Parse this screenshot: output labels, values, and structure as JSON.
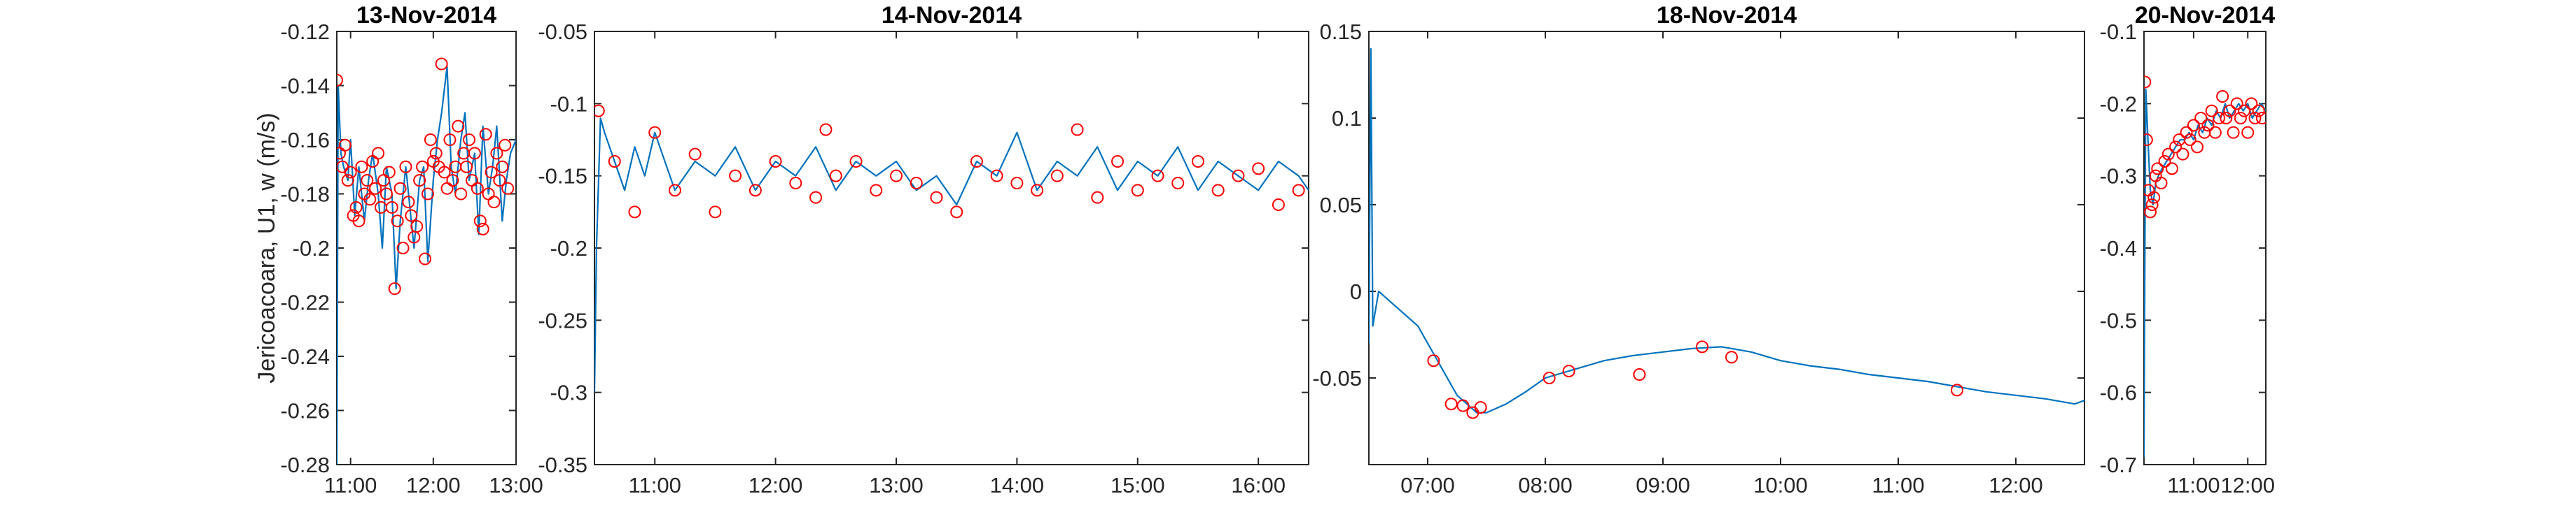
{
  "figure": {
    "ylabel": "Jericoacoara, U1, w (m/s)",
    "colors": {
      "line": "#0072BD",
      "marker": "#FF0000",
      "axis": "#262626",
      "background": "#FFFFFF"
    }
  },
  "chart_data": [
    {
      "type": "line",
      "title": "13-Nov-2014",
      "x_axis": "time of day",
      "xlim": [
        "10:50",
        "13:00"
      ],
      "xticks": [
        "11:00",
        "12:00",
        "13:00"
      ],
      "ylim": [
        -0.28,
        -0.12
      ],
      "yticks": [
        -0.28,
        -0.26,
        -0.24,
        -0.22,
        -0.2,
        -0.18,
        -0.16,
        -0.14,
        -0.12
      ],
      "grid": false,
      "legend": "none",
      "series": [
        {
          "style": "thin blue line, raw signal",
          "x": [
            "10:50",
            "10:51",
            "10:53",
            "10:55",
            "10:58",
            "11:00",
            "11:03",
            "11:06",
            "11:10",
            "11:13",
            "11:16",
            "11:20",
            "11:23",
            "11:26",
            "11:30",
            "11:33",
            "11:36",
            "11:40",
            "11:43",
            "11:46",
            "11:50",
            "11:53",
            "11:56",
            "12:00",
            "12:03",
            "12:06",
            "12:10",
            "12:13",
            "12:16",
            "12:20",
            "12:23",
            "12:26",
            "12:30",
            "12:33",
            "12:36",
            "12:40",
            "12:43",
            "12:46",
            "12:50",
            "12:53",
            "12:56",
            "13:00"
          ],
          "y": [
            -0.28,
            -0.14,
            -0.165,
            -0.17,
            -0.175,
            -0.16,
            -0.188,
            -0.17,
            -0.19,
            -0.175,
            -0.165,
            -0.18,
            -0.2,
            -0.17,
            -0.18,
            -0.215,
            -0.19,
            -0.17,
            -0.185,
            -0.2,
            -0.175,
            -0.17,
            -0.205,
            -0.175,
            -0.16,
            -0.15,
            -0.133,
            -0.17,
            -0.18,
            -0.16,
            -0.15,
            -0.175,
            -0.165,
            -0.195,
            -0.155,
            -0.18,
            -0.17,
            -0.155,
            -0.19,
            -0.175,
            -0.165,
            -0.16
          ]
        },
        {
          "style": "red circle markers",
          "x": [
            "10:50",
            "10:52",
            "10:54",
            "10:56",
            "10:58",
            "11:00",
            "11:02",
            "11:04",
            "11:06",
            "11:08",
            "11:10",
            "11:12",
            "11:14",
            "11:16",
            "11:18",
            "11:20",
            "11:22",
            "11:24",
            "11:26",
            "11:28",
            "11:30",
            "11:32",
            "11:34",
            "11:36",
            "11:38",
            "11:40",
            "11:42",
            "11:44",
            "11:46",
            "11:48",
            "11:50",
            "11:52",
            "11:54",
            "11:56",
            "11:58",
            "12:00",
            "12:02",
            "12:04",
            "12:06",
            "12:08",
            "12:10",
            "12:12",
            "12:14",
            "12:16",
            "12:18",
            "12:20",
            "12:22",
            "12:24",
            "12:26",
            "12:28",
            "12:30",
            "12:32",
            "12:34",
            "12:36",
            "12:38",
            "12:40",
            "12:42",
            "12:44",
            "12:46",
            "12:48",
            "12:50",
            "12:52",
            "12:54"
          ],
          "y": [
            -0.138,
            -0.165,
            -0.17,
            -0.162,
            -0.175,
            -0.172,
            -0.188,
            -0.185,
            -0.19,
            -0.17,
            -0.18,
            -0.175,
            -0.182,
            -0.168,
            -0.178,
            -0.165,
            -0.185,
            -0.175,
            -0.18,
            -0.172,
            -0.185,
            -0.215,
            -0.19,
            -0.178,
            -0.2,
            -0.17,
            -0.183,
            -0.188,
            -0.196,
            -0.192,
            -0.175,
            -0.17,
            -0.204,
            -0.18,
            -0.16,
            -0.168,
            -0.165,
            -0.17,
            -0.132,
            -0.172,
            -0.178,
            -0.16,
            -0.175,
            -0.17,
            -0.155,
            -0.18,
            -0.165,
            -0.17,
            -0.16,
            -0.175,
            -0.165,
            -0.178,
            -0.19,
            -0.193,
            -0.158,
            -0.18,
            -0.172,
            -0.183,
            -0.165,
            -0.175,
            -0.17,
            -0.162,
            -0.178
          ]
        }
      ]
    },
    {
      "type": "line",
      "title": "14-Nov-2014",
      "x_axis": "time of day",
      "xlim": [
        "10:30",
        "16:25"
      ],
      "xticks": [
        "11:00",
        "12:00",
        "13:00",
        "14:00",
        "15:00",
        "16:00"
      ],
      "ylim": [
        -0.35,
        -0.05
      ],
      "yticks": [
        -0.35,
        -0.3,
        -0.25,
        -0.2,
        -0.15,
        -0.1,
        -0.05
      ],
      "grid": false,
      "legend": "none",
      "series": [
        {
          "style": "thin blue line, raw signal",
          "x": [
            "10:30",
            "10:31",
            "10:33",
            "10:35",
            "10:40",
            "10:45",
            "10:50",
            "10:55",
            "11:00",
            "11:10",
            "11:20",
            "11:30",
            "11:40",
            "11:50",
            "12:00",
            "12:10",
            "12:20",
            "12:30",
            "12:40",
            "12:50",
            "13:00",
            "13:10",
            "13:20",
            "13:30",
            "13:40",
            "13:50",
            "14:00",
            "14:10",
            "14:20",
            "14:30",
            "14:40",
            "14:50",
            "15:00",
            "15:10",
            "15:20",
            "15:30",
            "15:40",
            "15:50",
            "16:00",
            "16:10",
            "16:20",
            "16:25"
          ],
          "y": [
            -0.3,
            -0.2,
            -0.11,
            -0.12,
            -0.14,
            -0.16,
            -0.13,
            -0.15,
            -0.12,
            -0.16,
            -0.14,
            -0.15,
            -0.13,
            -0.16,
            -0.14,
            -0.15,
            -0.13,
            -0.16,
            -0.14,
            -0.15,
            -0.14,
            -0.16,
            -0.15,
            -0.17,
            -0.14,
            -0.15,
            -0.12,
            -0.16,
            -0.14,
            -0.15,
            -0.13,
            -0.16,
            -0.14,
            -0.15,
            -0.13,
            -0.16,
            -0.14,
            -0.15,
            -0.16,
            -0.14,
            -0.15,
            -0.16
          ]
        },
        {
          "style": "red circle markers",
          "x": [
            "10:32",
            "10:40",
            "10:50",
            "11:00",
            "11:10",
            "11:20",
            "11:30",
            "11:40",
            "11:50",
            "12:00",
            "12:10",
            "12:20",
            "12:25",
            "12:30",
            "12:40",
            "12:50",
            "13:00",
            "13:10",
            "13:20",
            "13:30",
            "13:40",
            "13:50",
            "14:00",
            "14:10",
            "14:20",
            "14:30",
            "14:40",
            "14:50",
            "15:00",
            "15:10",
            "15:20",
            "15:30",
            "15:40",
            "15:50",
            "16:00",
            "16:10",
            "16:20"
          ],
          "y": [
            -0.105,
            -0.14,
            -0.175,
            -0.12,
            -0.16,
            -0.135,
            -0.175,
            -0.15,
            -0.16,
            -0.14,
            -0.155,
            -0.165,
            -0.118,
            -0.15,
            -0.14,
            -0.16,
            -0.15,
            -0.155,
            -0.165,
            -0.175,
            -0.14,
            -0.15,
            -0.155,
            -0.16,
            -0.15,
            -0.118,
            -0.165,
            -0.14,
            -0.16,
            -0.15,
            -0.155,
            -0.14,
            -0.16,
            -0.15,
            -0.145,
            -0.17,
            -0.16
          ]
        }
      ]
    },
    {
      "type": "line",
      "title": "18-Nov-2014",
      "x_axis": "time of day",
      "xlim": [
        "06:30",
        "12:35"
      ],
      "xticks": [
        "07:00",
        "08:00",
        "09:00",
        "10:00",
        "11:00",
        "12:00"
      ],
      "ylim": [
        -0.1,
        0.15
      ],
      "yticks": [
        -0.05,
        0,
        0.05,
        0.1,
        0.15
      ],
      "grid": false,
      "legend": "none",
      "series": [
        {
          "style": "thin blue line, raw signal",
          "x": [
            "06:30",
            "06:31",
            "06:32",
            "06:35",
            "06:40",
            "06:45",
            "06:50",
            "06:55",
            "07:00",
            "07:05",
            "07:10",
            "07:15",
            "07:20",
            "07:25",
            "07:30",
            "07:40",
            "07:50",
            "08:00",
            "08:15",
            "08:30",
            "08:45",
            "09:00",
            "09:15",
            "09:30",
            "09:45",
            "10:00",
            "10:15",
            "10:30",
            "10:45",
            "11:00",
            "11:15",
            "11:30",
            "11:45",
            "12:00",
            "12:15",
            "12:30",
            "12:35"
          ],
          "y": [
            -0.03,
            0.14,
            -0.02,
            0.0,
            -0.005,
            -0.01,
            -0.015,
            -0.02,
            -0.03,
            -0.04,
            -0.05,
            -0.06,
            -0.065,
            -0.07,
            -0.07,
            -0.065,
            -0.058,
            -0.05,
            -0.045,
            -0.04,
            -0.037,
            -0.035,
            -0.033,
            -0.032,
            -0.035,
            -0.04,
            -0.043,
            -0.045,
            -0.048,
            -0.05,
            -0.052,
            -0.055,
            -0.058,
            -0.06,
            -0.062,
            -0.065,
            -0.063
          ]
        },
        {
          "style": "red circle markers",
          "x": [
            "07:03",
            "07:12",
            "07:18",
            "07:23",
            "07:27",
            "08:02",
            "08:12",
            "08:48",
            "09:20",
            "09:35",
            "11:30"
          ],
          "y": [
            -0.04,
            -0.065,
            -0.066,
            -0.07,
            -0.067,
            -0.05,
            -0.046,
            -0.048,
            -0.032,
            -0.038,
            -0.057
          ]
        }
      ]
    },
    {
      "type": "line",
      "title": "20-Nov-2014",
      "x_axis": "time of day",
      "xlim": [
        "10:05",
        "12:20"
      ],
      "xticks": [
        "11:00",
        "12:00"
      ],
      "ylim": [
        -0.7,
        -0.1
      ],
      "yticks": [
        -0.7,
        -0.6,
        -0.5,
        -0.4,
        -0.3,
        -0.2,
        -0.1
      ],
      "grid": false,
      "legend": "none",
      "series": [
        {
          "style": "thin blue line, raw signal",
          "x": [
            "10:05",
            "10:06",
            "10:07",
            "10:09",
            "10:12",
            "10:15",
            "10:18",
            "10:21",
            "10:25",
            "10:30",
            "10:35",
            "10:40",
            "10:45",
            "10:50",
            "10:55",
            "11:00",
            "11:05",
            "11:10",
            "11:15",
            "11:20",
            "11:25",
            "11:30",
            "11:35",
            "11:40",
            "11:45",
            "11:50",
            "11:55",
            "12:00",
            "12:05",
            "12:10",
            "12:15",
            "12:20"
          ],
          "y": [
            -0.69,
            -0.4,
            -0.18,
            -0.24,
            -0.32,
            -0.34,
            -0.31,
            -0.3,
            -0.29,
            -0.28,
            -0.27,
            -0.26,
            -0.25,
            -0.25,
            -0.24,
            -0.25,
            -0.23,
            -0.24,
            -0.22,
            -0.23,
            -0.21,
            -0.22,
            -0.2,
            -0.22,
            -0.21,
            -0.2,
            -0.21,
            -0.2,
            -0.22,
            -0.21,
            -0.2,
            -0.21
          ]
        },
        {
          "style": "red circle markers",
          "x": [
            "10:06",
            "10:08",
            "10:10",
            "10:12",
            "10:14",
            "10:16",
            "10:18",
            "10:20",
            "10:24",
            "10:28",
            "10:32",
            "10:36",
            "10:40",
            "10:44",
            "10:48",
            "10:52",
            "10:56",
            "11:00",
            "11:04",
            "11:08",
            "11:12",
            "11:16",
            "11:20",
            "11:24",
            "11:28",
            "11:32",
            "11:36",
            "11:40",
            "11:44",
            "11:48",
            "11:52",
            "11:56",
            "12:00",
            "12:04",
            "12:08",
            "12:12",
            "12:16"
          ],
          "y": [
            -0.17,
            -0.25,
            -0.32,
            -0.35,
            -0.34,
            -0.33,
            -0.3,
            -0.29,
            -0.31,
            -0.28,
            -0.27,
            -0.29,
            -0.26,
            -0.25,
            -0.27,
            -0.24,
            -0.25,
            -0.23,
            -0.26,
            -0.22,
            -0.24,
            -0.23,
            -0.21,
            -0.24,
            -0.22,
            -0.19,
            -0.22,
            -0.21,
            -0.24,
            -0.2,
            -0.22,
            -0.21,
            -0.24,
            -0.2,
            -0.22,
            -0.21,
            -0.22
          ]
        }
      ]
    }
  ]
}
